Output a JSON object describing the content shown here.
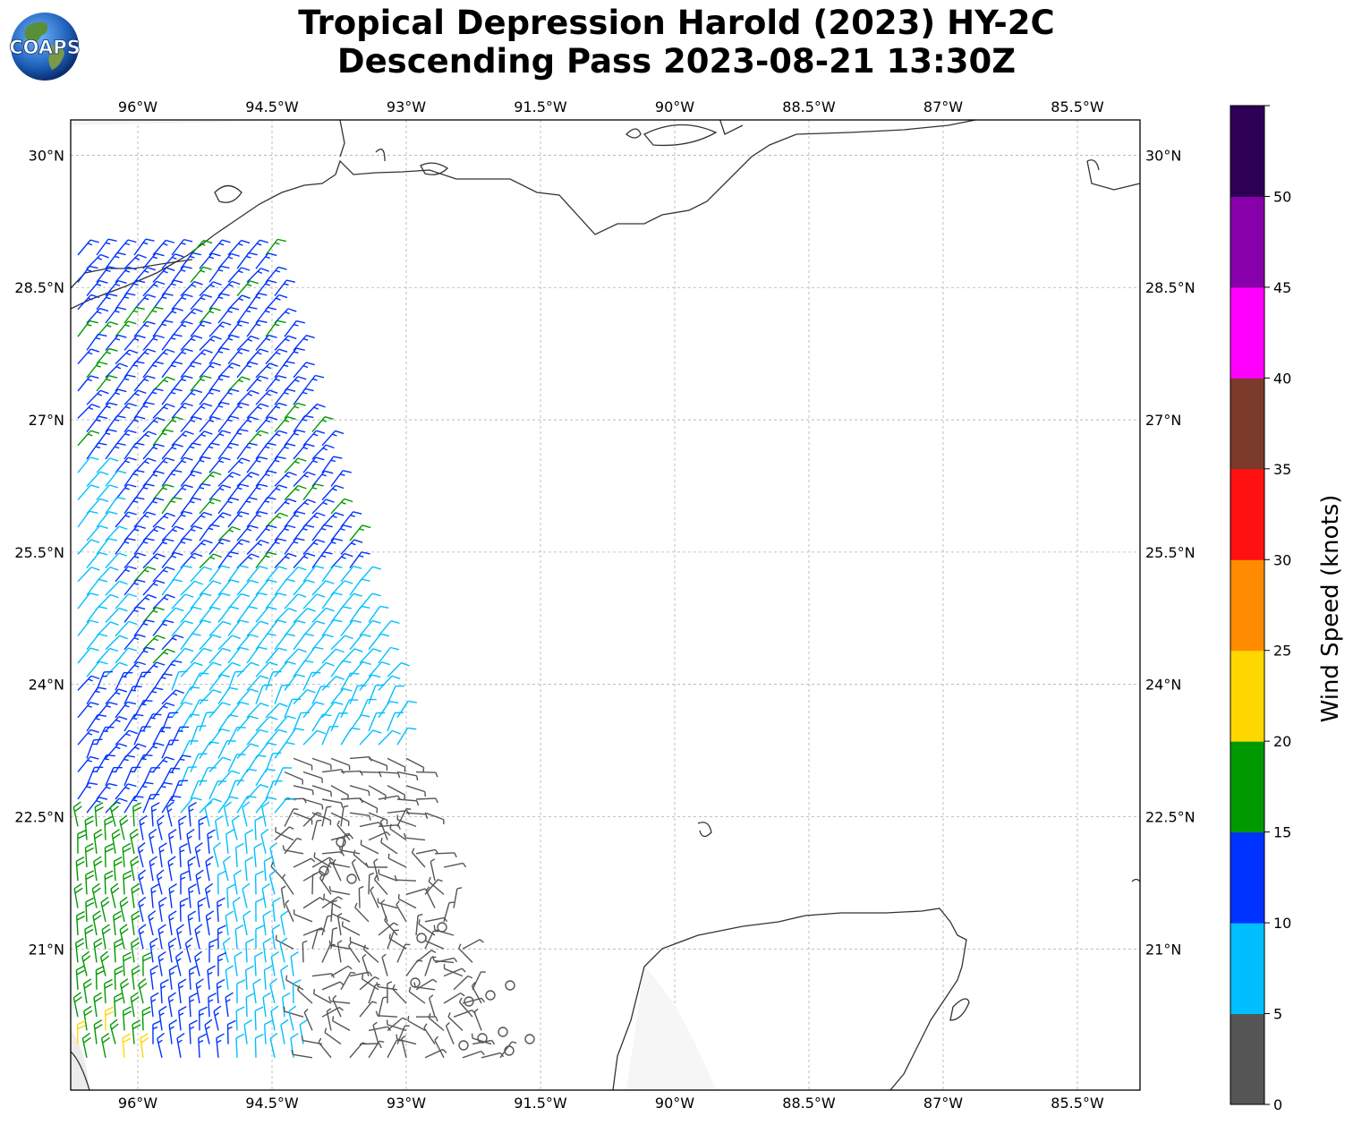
{
  "title": {
    "line1": "Tropical Depression Harold (2023) HY-2C",
    "line2": "Descending Pass 2023-08-21 13:30Z"
  },
  "logo": {
    "text": "COAPS"
  },
  "map": {
    "projection": "PlateCarree",
    "lon_range": [
      -96.75,
      -84.8
    ],
    "lat_range": [
      19.4,
      30.4
    ],
    "lon_ticks": [
      "96°W",
      "94.5°W",
      "93°W",
      "91.5°W",
      "90°W",
      "88.5°W",
      "87°W",
      "85.5°W"
    ],
    "lon_tick_values": [
      -96,
      -94.5,
      -93,
      -91.5,
      -90,
      -88.5,
      -87,
      -85.5
    ],
    "lat_ticks": [
      "30°N",
      "28.5°N",
      "27°N",
      "25.5°N",
      "24°N",
      "22.5°N",
      "21°N"
    ],
    "lat_tick_values": [
      30,
      28.5,
      27,
      25.5,
      24,
      22.5,
      21
    ],
    "grid": true,
    "coastline_color": "#333333",
    "grid_color": "#b0b0b0"
  },
  "colorbar": {
    "label": "Wind Speed (knots)",
    "ticks": [
      "0",
      "5",
      "10",
      "15",
      "20",
      "25",
      "30",
      "35",
      "40",
      "45",
      "50"
    ],
    "colors": [
      "#555555",
      "#00bfff",
      "#0033ff",
      "#009900",
      "#ffd700",
      "#ff8c00",
      "#ff1111",
      "#7b3a2a",
      "#ff00ff",
      "#8800aa",
      "#2d0055"
    ]
  },
  "chart_data": {
    "type": "wind_barbs",
    "units": "knots",
    "swath_segments": [
      {
        "lat_range": [
          28.5,
          29.0
        ],
        "speed_class": "10-15",
        "direction_from": "SW"
      },
      {
        "lat_range": [
          26.8,
          28.0
        ],
        "speed_class": "10-15 with 15-20 band",
        "direction_from": "SW"
      },
      {
        "lat_range": [
          25.0,
          26.8
        ],
        "speed_class": "10-15",
        "direction_from": "SW"
      },
      {
        "lat_range": [
          23.2,
          25.2
        ],
        "speed_class": "5-10 east, 10-15 west",
        "direction_from": "SW"
      },
      {
        "lat_range": [
          22.4,
          23.2
        ],
        "speed_class": "0-5 center, 5-10 edges",
        "direction_from": "variable"
      },
      {
        "lat_range": [
          19.4,
          22.4
        ],
        "speed_class": "15-25 west, 10-15 mid, 0-5 east",
        "direction_from": "S-SW"
      }
    ],
    "speed_bins": [
      [
        0,
        5
      ],
      [
        5,
        10
      ],
      [
        10,
        15
      ],
      [
        15,
        20
      ],
      [
        20,
        25
      ],
      [
        25,
        30
      ],
      [
        30,
        35
      ],
      [
        35,
        40
      ],
      [
        40,
        45
      ],
      [
        45,
        50
      ],
      [
        50,
        55
      ]
    ]
  }
}
